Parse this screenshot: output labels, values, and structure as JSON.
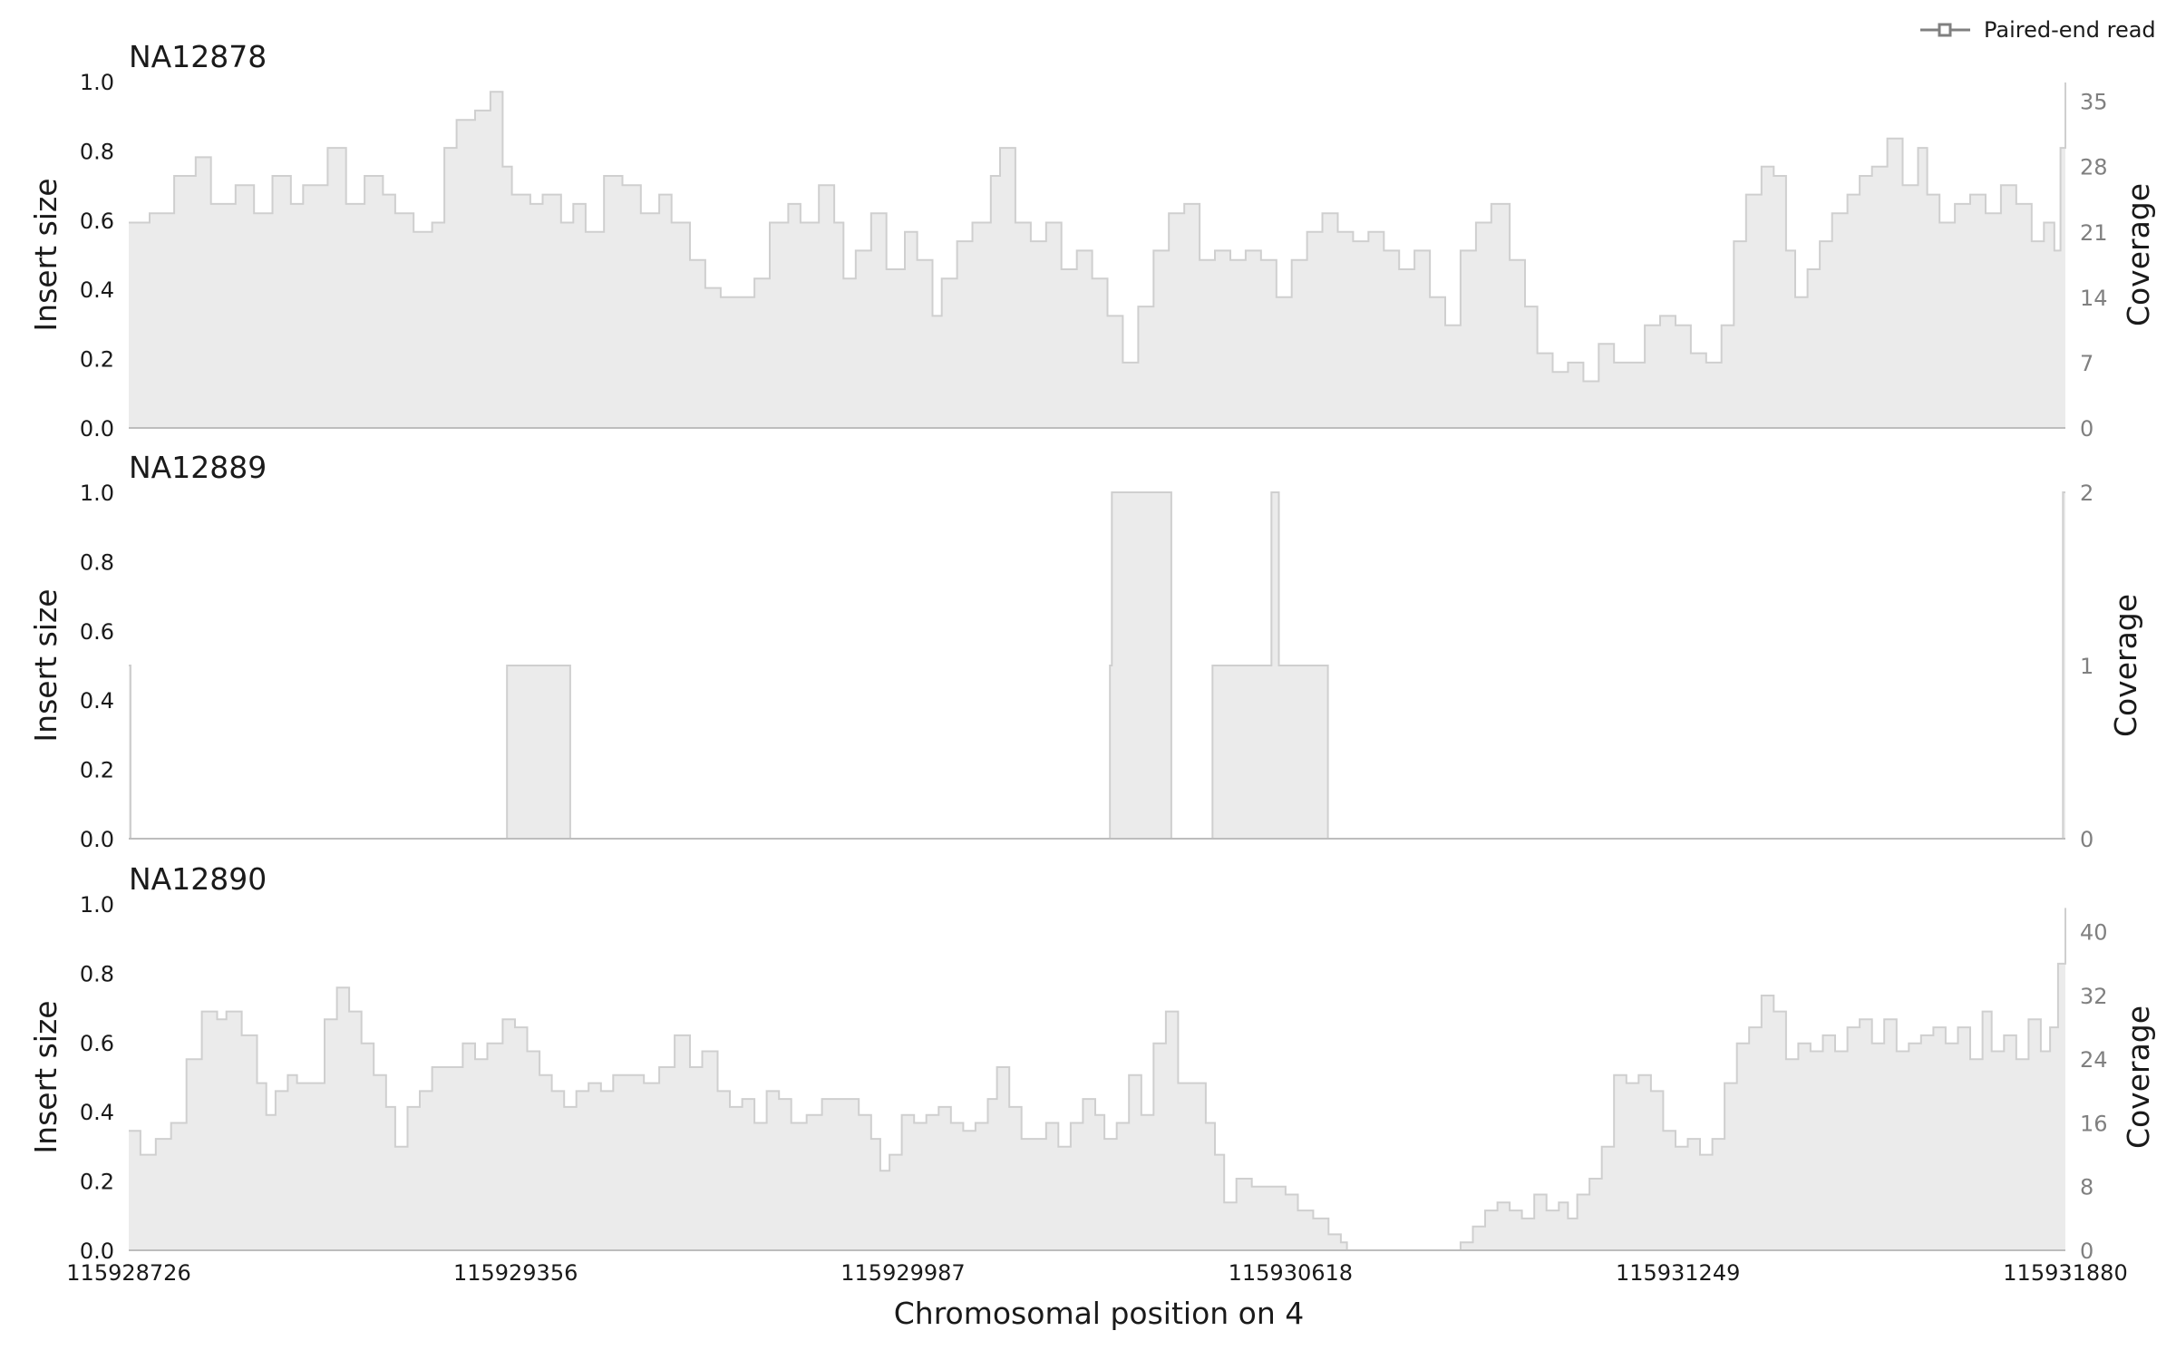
{
  "legend": {
    "label": "Paired-end read",
    "line_color": "#808080"
  },
  "xlabel": "Chromosomal position on 4",
  "x_ticks": [
    "115928726",
    "115929356",
    "115929987",
    "115930618",
    "115931249",
    "115931880"
  ],
  "colors": {
    "fill": "#ebebeb",
    "edge": "#cfcfcf",
    "axis": "#bdbdbd",
    "right_tick_text": "#808080"
  },
  "chart_data": [
    {
      "type": "area",
      "title": "NA12878",
      "ylabel": "Insert size",
      "y2label": "Coverage",
      "ylim": [
        0,
        1.0
      ],
      "y_ticks": [
        "0.0",
        "0.2",
        "0.4",
        "0.6",
        "0.8",
        "1.0"
      ],
      "y2lim": [
        0,
        37.1
      ],
      "y2_ticks": [
        "0",
        "7",
        "14",
        "21",
        "28",
        "35"
      ],
      "xlim": [
        115928726,
        115931880
      ],
      "coverage_points": [
        [
          115928726,
          22
        ],
        [
          115928760,
          23
        ],
        [
          115928800,
          27
        ],
        [
          115928835,
          29
        ],
        [
          115928860,
          24
        ],
        [
          115928900,
          26
        ],
        [
          115928930,
          23
        ],
        [
          115928960,
          27
        ],
        [
          115928990,
          24
        ],
        [
          115929010,
          26
        ],
        [
          115929050,
          30
        ],
        [
          115929080,
          24
        ],
        [
          115929110,
          27
        ],
        [
          115929140,
          25
        ],
        [
          115929160,
          23
        ],
        [
          115929190,
          21
        ],
        [
          115929220,
          22
        ],
        [
          115929240,
          30
        ],
        [
          115929260,
          33
        ],
        [
          115929290,
          34
        ],
        [
          115929315,
          36
        ],
        [
          115929335,
          28
        ],
        [
          115929350,
          25
        ],
        [
          115929380,
          24
        ],
        [
          115929400,
          25
        ],
        [
          115929430,
          22
        ],
        [
          115929450,
          24
        ],
        [
          115929470,
          21
        ],
        [
          115929500,
          27
        ],
        [
          115929530,
          26
        ],
        [
          115929560,
          23
        ],
        [
          115929590,
          25
        ],
        [
          115929610,
          22
        ],
        [
          115929640,
          18
        ],
        [
          115929665,
          15
        ],
        [
          115929690,
          14
        ],
        [
          115929720,
          14
        ],
        [
          115929745,
          16
        ],
        [
          115929770,
          22
        ],
        [
          115929800,
          24
        ],
        [
          115929820,
          22
        ],
        [
          115929850,
          26
        ],
        [
          115929875,
          22
        ],
        [
          115929890,
          16
        ],
        [
          115929910,
          19
        ],
        [
          115929935,
          23
        ],
        [
          115929960,
          17
        ],
        [
          115929990,
          21
        ],
        [
          115930010,
          18
        ],
        [
          115930035,
          12
        ],
        [
          115930050,
          16
        ],
        [
          115930075,
          20
        ],
        [
          115930100,
          22
        ],
        [
          115930130,
          27
        ],
        [
          115930145,
          30
        ],
        [
          115930170,
          22
        ],
        [
          115930195,
          20
        ],
        [
          115930220,
          22
        ],
        [
          115930245,
          17
        ],
        [
          115930270,
          19
        ],
        [
          115930295,
          16
        ],
        [
          115930320,
          12
        ],
        [
          115930345,
          7
        ],
        [
          115930370,
          13
        ],
        [
          115930395,
          19
        ],
        [
          115930420,
          23
        ],
        [
          115930445,
          24
        ],
        [
          115930470,
          18
        ],
        [
          115930495,
          19
        ],
        [
          115930520,
          18
        ],
        [
          115930545,
          19
        ],
        [
          115930570,
          18
        ],
        [
          115930595,
          14
        ],
        [
          115930620,
          18
        ],
        [
          115930645,
          21
        ],
        [
          115930670,
          23
        ],
        [
          115930695,
          21
        ],
        [
          115930720,
          20
        ],
        [
          115930745,
          21
        ],
        [
          115930770,
          19
        ],
        [
          115930795,
          17
        ],
        [
          115930820,
          19
        ],
        [
          115930845,
          14
        ],
        [
          115930870,
          11
        ],
        [
          115930895,
          19
        ],
        [
          115930920,
          22
        ],
        [
          115930945,
          24
        ],
        [
          115930975,
          18
        ],
        [
          115931000,
          13
        ],
        [
          115931020,
          8
        ],
        [
          115931045,
          6
        ],
        [
          115931070,
          7
        ],
        [
          115931095,
          5
        ],
        [
          115931120,
          9
        ],
        [
          115931145,
          7
        ],
        [
          115931170,
          7
        ],
        [
          115931195,
          11
        ],
        [
          115931220,
          12
        ],
        [
          115931245,
          11
        ],
        [
          115931270,
          8
        ],
        [
          115931295,
          7
        ],
        [
          115931320,
          11
        ],
        [
          115931340,
          20
        ],
        [
          115931360,
          25
        ],
        [
          115931385,
          28
        ],
        [
          115931405,
          27
        ],
        [
          115931425,
          19
        ],
        [
          115931440,
          14
        ],
        [
          115931460,
          17
        ],
        [
          115931480,
          20
        ],
        [
          115931500,
          23
        ],
        [
          115931525,
          25
        ],
        [
          115931545,
          27
        ],
        [
          115931565,
          28
        ],
        [
          115931590,
          31
        ],
        [
          115931615,
          26
        ],
        [
          115931640,
          30
        ],
        [
          115931655,
          25
        ],
        [
          115931675,
          22
        ],
        [
          115931700,
          24
        ],
        [
          115931725,
          25
        ],
        [
          115931750,
          23
        ],
        [
          115931775,
          26
        ],
        [
          115931800,
          24
        ],
        [
          115931825,
          20
        ],
        [
          115931845,
          22
        ],
        [
          115931862,
          19
        ],
        [
          115931872,
          30
        ],
        [
          115931880,
          37
        ]
      ]
    },
    {
      "type": "area",
      "title": "NA12889",
      "ylabel": "Insert size",
      "y2label": "Coverage",
      "ylim": [
        0,
        1.0
      ],
      "y_ticks": [
        "0.0",
        "0.2",
        "0.4",
        "0.6",
        "0.8",
        "1.0"
      ],
      "y2lim": [
        0,
        2
      ],
      "y2_ticks": [
        "0",
        "1",
        "2"
      ],
      "xlim": [
        115928726,
        115931880
      ],
      "coverage_points": [
        [
          115928726,
          1
        ],
        [
          115928729,
          0
        ],
        [
          115929341,
          0
        ],
        [
          115929342,
          1
        ],
        [
          115929444,
          1
        ],
        [
          115929445,
          0
        ],
        [
          115930322,
          0
        ],
        [
          115930324,
          1
        ],
        [
          115930327,
          2
        ],
        [
          115930423,
          2
        ],
        [
          115930424,
          0
        ],
        [
          115930490,
          0
        ],
        [
          115930491,
          1
        ],
        [
          115930586,
          1
        ],
        [
          115930587,
          2
        ],
        [
          115930598,
          2
        ],
        [
          115930599,
          1
        ],
        [
          115930678,
          1
        ],
        [
          115930679,
          0
        ],
        [
          115931874,
          0
        ],
        [
          115931876,
          2
        ],
        [
          115931880,
          2
        ]
      ]
    },
    {
      "type": "area",
      "title": "NA12890",
      "ylabel": "Insert size",
      "y2label": "Coverage",
      "ylim": [
        0,
        1.0
      ],
      "y_ticks": [
        "0.0",
        "0.2",
        "0.4",
        "0.6",
        "0.8",
        "1.0"
      ],
      "y2lim": [
        0,
        43.5
      ],
      "y2_ticks": [
        "0",
        "8",
        "16",
        "24",
        "32",
        "40"
      ],
      "xlim": [
        115928726,
        115931880
      ],
      "coverage_points": [
        [
          115928726,
          15
        ],
        [
          115928745,
          12
        ],
        [
          115928770,
          14
        ],
        [
          115928795,
          16
        ],
        [
          115928820,
          24
        ],
        [
          115928845,
          30
        ],
        [
          115928870,
          29
        ],
        [
          115928885,
          30
        ],
        [
          115928910,
          27
        ],
        [
          115928935,
          21
        ],
        [
          115928950,
          17
        ],
        [
          115928965,
          20
        ],
        [
          115928985,
          22
        ],
        [
          115929000,
          21
        ],
        [
          115929020,
          21
        ],
        [
          115929045,
          29
        ],
        [
          115929065,
          33
        ],
        [
          115929085,
          30
        ],
        [
          115929105,
          26
        ],
        [
          115929125,
          22
        ],
        [
          115929145,
          18
        ],
        [
          115929160,
          13
        ],
        [
          115929180,
          18
        ],
        [
          115929200,
          20
        ],
        [
          115929220,
          23
        ],
        [
          115929245,
          23
        ],
        [
          115929270,
          26
        ],
        [
          115929290,
          24
        ],
        [
          115929310,
          26
        ],
        [
          115929335,
          29
        ],
        [
          115929355,
          28
        ],
        [
          115929375,
          25
        ],
        [
          115929395,
          22
        ],
        [
          115929415,
          20
        ],
        [
          115929435,
          18
        ],
        [
          115929455,
          20
        ],
        [
          115929475,
          21
        ],
        [
          115929495,
          20
        ],
        [
          115929515,
          22
        ],
        [
          115929540,
          22
        ],
        [
          115929565,
          21
        ],
        [
          115929590,
          23
        ],
        [
          115929615,
          27
        ],
        [
          115929640,
          23
        ],
        [
          115929660,
          25
        ],
        [
          115929685,
          20
        ],
        [
          115929705,
          18
        ],
        [
          115929725,
          19
        ],
        [
          115929745,
          16
        ],
        [
          115929765,
          20
        ],
        [
          115929785,
          19
        ],
        [
          115929805,
          16
        ],
        [
          115929830,
          17
        ],
        [
          115929855,
          19
        ],
        [
          115929875,
          19
        ],
        [
          115929895,
          19
        ],
        [
          115929915,
          17
        ],
        [
          115929935,
          14
        ],
        [
          115929950,
          10
        ],
        [
          115929965,
          12
        ],
        [
          115929985,
          17
        ],
        [
          115930005,
          16
        ],
        [
          115930025,
          17
        ],
        [
          115930045,
          18
        ],
        [
          115930065,
          16
        ],
        [
          115930085,
          15
        ],
        [
          115930105,
          16
        ],
        [
          115930125,
          19
        ],
        [
          115930140,
          23
        ],
        [
          115930160,
          18
        ],
        [
          115930180,
          14
        ],
        [
          115930200,
          14
        ],
        [
          115930220,
          16
        ],
        [
          115930240,
          13
        ],
        [
          115930260,
          16
        ],
        [
          115930280,
          19
        ],
        [
          115930300,
          17
        ],
        [
          115930315,
          14
        ],
        [
          115930335,
          16
        ],
        [
          115930355,
          22
        ],
        [
          115930375,
          17
        ],
        [
          115930395,
          26
        ],
        [
          115930415,
          30
        ],
        [
          115930435,
          21
        ],
        [
          115930460,
          21
        ],
        [
          115930480,
          16
        ],
        [
          115930495,
          12
        ],
        [
          115930510,
          6
        ],
        [
          115930530,
          9
        ],
        [
          115930555,
          8
        ],
        [
          115930580,
          8
        ],
        [
          115930610,
          7
        ],
        [
          115930630,
          5
        ],
        [
          115930655,
          4
        ],
        [
          115930680,
          2
        ],
        [
          115930700,
          1
        ],
        [
          115930710,
          0
        ],
        [
          115930880,
          0
        ],
        [
          115930895,
          1
        ],
        [
          115930915,
          3
        ],
        [
          115930935,
          5
        ],
        [
          115930955,
          6
        ],
        [
          115930975,
          5
        ],
        [
          115930995,
          4
        ],
        [
          115931015,
          7
        ],
        [
          115931035,
          5
        ],
        [
          115931055,
          6
        ],
        [
          115931070,
          4
        ],
        [
          115931085,
          7
        ],
        [
          115931105,
          9
        ],
        [
          115931125,
          13
        ],
        [
          115931145,
          22
        ],
        [
          115931165,
          21
        ],
        [
          115931185,
          22
        ],
        [
          115931205,
          20
        ],
        [
          115931225,
          15
        ],
        [
          115931245,
          13
        ],
        [
          115931265,
          14
        ],
        [
          115931285,
          12
        ],
        [
          115931305,
          14
        ],
        [
          115931325,
          21
        ],
        [
          115931345,
          26
        ],
        [
          115931365,
          28
        ],
        [
          115931385,
          32
        ],
        [
          115931405,
          30
        ],
        [
          115931425,
          24
        ],
        [
          115931445,
          26
        ],
        [
          115931465,
          25
        ],
        [
          115931485,
          27
        ],
        [
          115931505,
          25
        ],
        [
          115931525,
          28
        ],
        [
          115931545,
          29
        ],
        [
          115931565,
          26
        ],
        [
          115931585,
          29
        ],
        [
          115931605,
          25
        ],
        [
          115931625,
          26
        ],
        [
          115931645,
          27
        ],
        [
          115931665,
          28
        ],
        [
          115931685,
          26
        ],
        [
          115931705,
          28
        ],
        [
          115931725,
          24
        ],
        [
          115931745,
          30
        ],
        [
          115931760,
          25
        ],
        [
          115931780,
          27
        ],
        [
          115931800,
          24
        ],
        [
          115931820,
          29
        ],
        [
          115931840,
          25
        ],
        [
          115931855,
          28
        ],
        [
          115931868,
          36
        ],
        [
          115931880,
          43
        ]
      ]
    }
  ]
}
